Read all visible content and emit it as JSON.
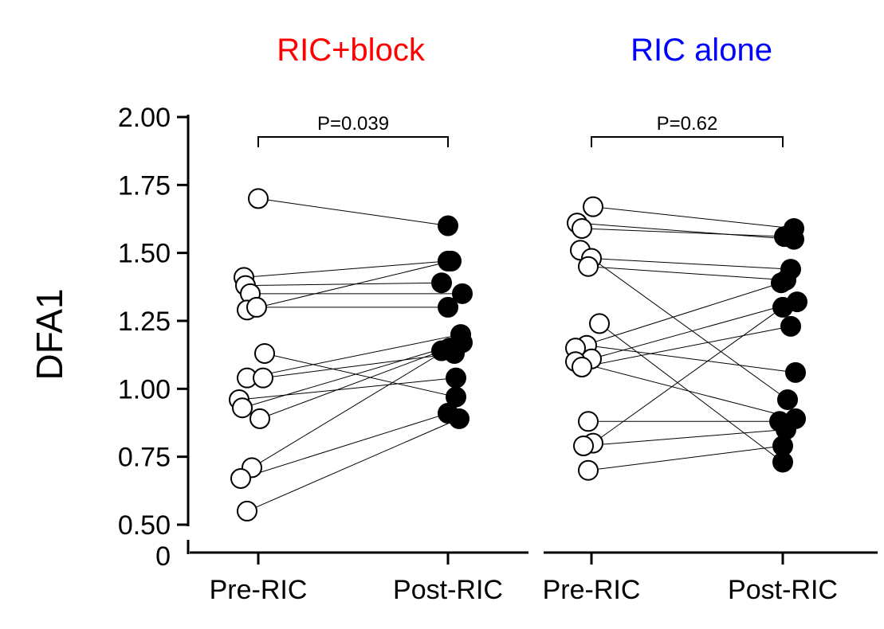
{
  "ylabel": "DFA1",
  "y_break_label": "0",
  "colors": {
    "pre_fill": "#ffffff",
    "post_fill": "#000000",
    "stroke": "#000000",
    "panel_1_title": "#ff0000",
    "panel_2_title": "#0000ff"
  },
  "chart_data": [
    {
      "type": "scatter",
      "title": "RIC+block",
      "xlabel": "",
      "ylabel": "DFA1",
      "categories": [
        "Pre-RIC",
        "Post-RIC"
      ],
      "ylim": [
        0.5,
        2.0
      ],
      "yticks": [
        "0.50",
        "0.75",
        "1.00",
        "1.25",
        "1.50",
        "1.75",
        "2.00"
      ],
      "axis_break": true,
      "grid": false,
      "p_value_label": "P=0.039",
      "pairs": [
        {
          "pre": 1.7,
          "post": 1.6
        },
        {
          "pre": 1.41,
          "post": 1.47
        },
        {
          "pre": 1.38,
          "post": 1.39
        },
        {
          "pre": 1.35,
          "post": 1.35
        },
        {
          "pre": 1.29,
          "post": 1.47
        },
        {
          "pre": 1.3,
          "post": 1.3
        },
        {
          "pre": 1.13,
          "post": 0.97
        },
        {
          "pre": 1.04,
          "post": 1.2
        },
        {
          "pre": 1.04,
          "post": 1.13
        },
        {
          "pre": 0.96,
          "post": 1.04
        },
        {
          "pre": 0.93,
          "post": 1.17
        },
        {
          "pre": 0.89,
          "post": 1.14
        },
        {
          "pre": 0.71,
          "post": 1.15
        },
        {
          "pre": 0.67,
          "post": 0.91
        },
        {
          "pre": 0.55,
          "post": 0.89
        }
      ]
    },
    {
      "type": "scatter",
      "title": "RIC alone",
      "xlabel": "",
      "ylabel": "",
      "categories": [
        "Pre-RIC",
        "Post-RIC"
      ],
      "ylim": [
        0.5,
        2.0
      ],
      "axis_break": true,
      "grid": false,
      "p_value_label": "P=0.62",
      "pairs": [
        {
          "pre": 1.67,
          "post": 1.59
        },
        {
          "pre": 1.61,
          "post": 1.55
        },
        {
          "pre": 1.59,
          "post": 1.56
        },
        {
          "pre": 1.51,
          "post": 0.96
        },
        {
          "pre": 1.48,
          "post": 1.44
        },
        {
          "pre": 1.45,
          "post": 1.4
        },
        {
          "pre": 1.24,
          "post": 0.73
        },
        {
          "pre": 1.16,
          "post": 1.06
        },
        {
          "pre": 1.15,
          "post": 1.39
        },
        {
          "pre": 1.11,
          "post": 1.32
        },
        {
          "pre": 1.1,
          "post": 0.89
        },
        {
          "pre": 1.08,
          "post": 1.23
        },
        {
          "pre": 0.88,
          "post": 0.88
        },
        {
          "pre": 0.8,
          "post": 1.3
        },
        {
          "pre": 0.79,
          "post": 0.85
        },
        {
          "pre": 0.7,
          "post": 0.79
        }
      ]
    }
  ]
}
